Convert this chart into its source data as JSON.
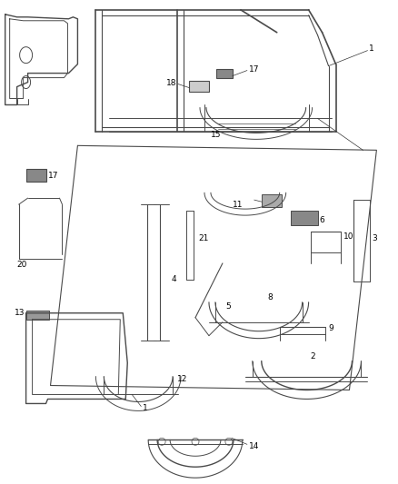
{
  "bg_color": "#ffffff",
  "line_color": "#4a4a4a",
  "label_color": "#000000",
  "label_fontsize": 6.5,
  "fig_width": 4.38,
  "fig_height": 5.33,
  "dpi": 100
}
